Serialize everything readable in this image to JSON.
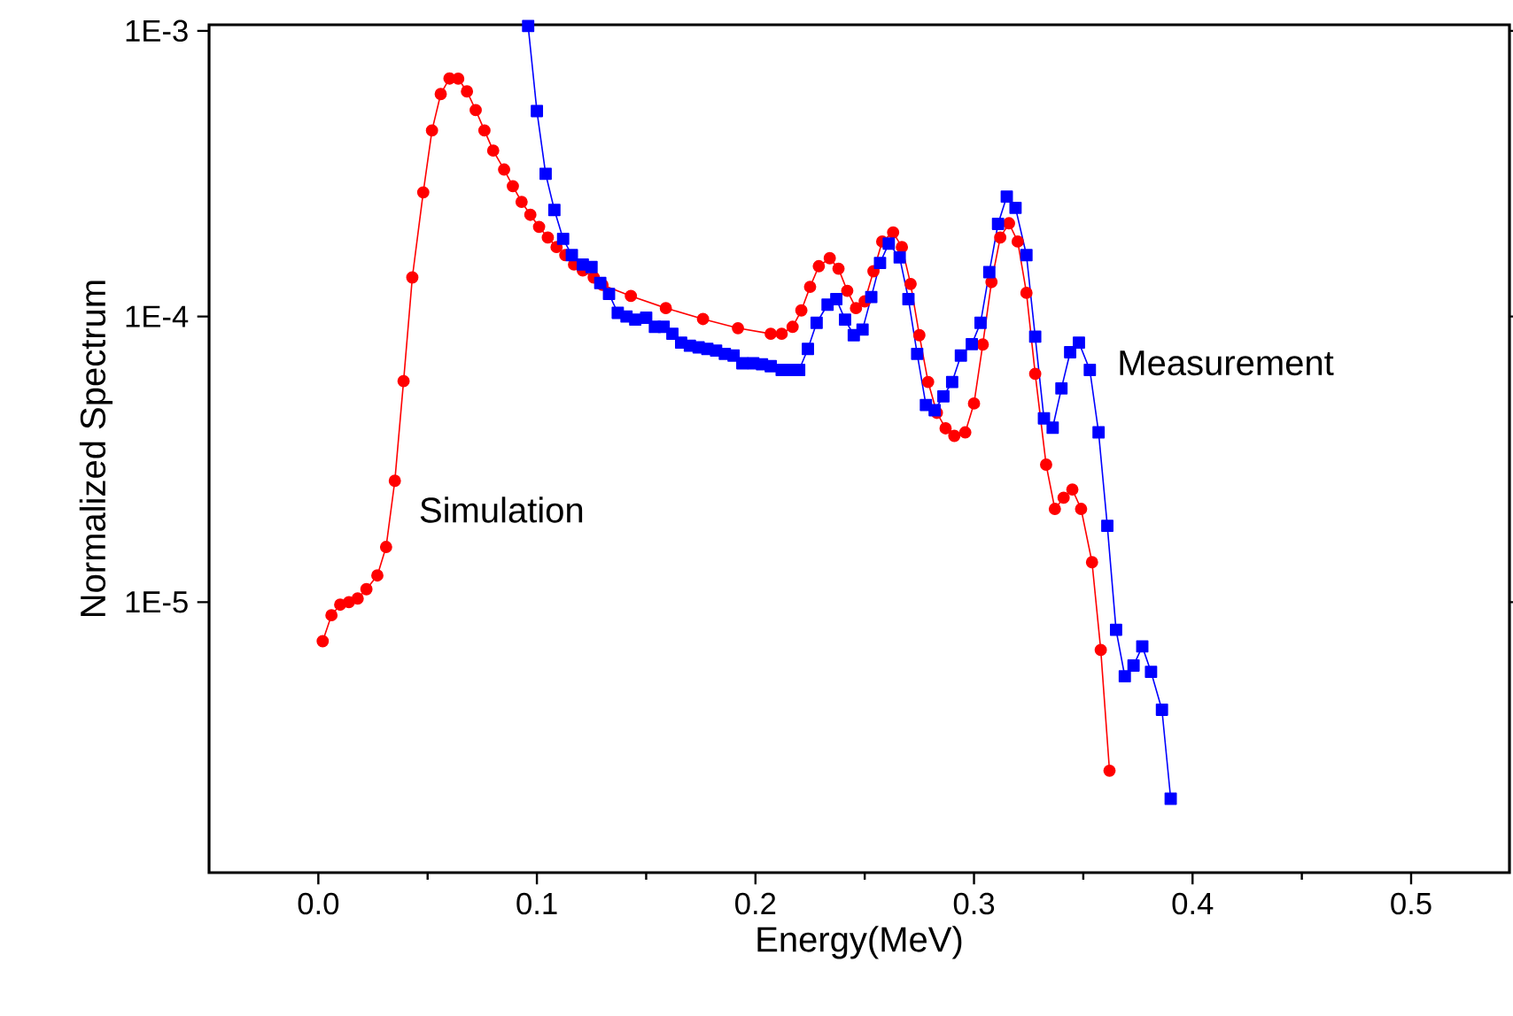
{
  "chart_data": {
    "type": "line",
    "xlabel": "Energy(MeV)",
    "ylabel": "Normalized Spectrum",
    "log": "y",
    "grid": false,
    "legend": false,
    "xlim": [
      -0.05,
      0.545
    ],
    "xticks": [
      {
        "value": 0,
        "label": "0.0"
      },
      0.1,
      0.2,
      0.3,
      0.4,
      0.5
    ],
    "ylim": [
      1.13e-06,
      0.00105
    ],
    "yticks": [
      {
        "value": 0.001,
        "label": "1E-3"
      },
      {
        "value": 0.0001,
        "label": "1E-4"
      },
      {
        "value": 1e-05,
        "label": "1E-5"
      }
    ],
    "series": [
      {
        "name": "Simulation",
        "color": "#ff0000",
        "marker": "circle",
        "x": [
          0.002,
          0.006,
          0.01,
          0.014,
          0.018,
          0.022,
          0.027,
          0.031,
          0.035,
          0.039,
          0.043,
          0.048,
          0.052,
          0.056,
          0.06,
          0.064,
          0.068,
          0.072,
          0.076,
          0.08,
          0.085,
          0.089,
          0.093,
          0.097,
          0.101,
          0.105,
          0.109,
          0.113,
          0.117,
          0.121,
          0.126,
          0.13,
          0.143,
          0.159,
          0.176,
          0.192,
          0.207,
          0.212,
          0.217,
          0.221,
          0.225,
          0.229,
          0.234,
          0.238,
          0.242,
          0.246,
          0.25,
          0.254,
          0.258,
          0.263,
          0.267,
          0.271,
          0.275,
          0.279,
          0.283,
          0.287,
          0.291,
          0.296,
          0.3,
          0.304,
          0.308,
          0.312,
          0.316,
          0.32,
          0.324,
          0.328,
          0.333,
          0.337,
          0.341,
          0.345,
          0.349,
          0.354,
          0.358,
          0.362
        ],
        "values": [
          7.3e-06,
          9e-06,
          9.8e-06,
          1e-05,
          1.03e-05,
          1.11e-05,
          1.24e-05,
          1.56e-05,
          2.66e-05,
          5.94e-05,
          0.000137,
          0.000272,
          0.000448,
          0.000601,
          0.000681,
          0.00068,
          0.000614,
          0.000528,
          0.000448,
          0.000381,
          0.000327,
          0.000286,
          0.000252,
          0.000227,
          0.000206,
          0.000189,
          0.000175,
          0.000164,
          0.000152,
          0.000145,
          0.000137,
          0.000129,
          0.000118,
          0.000107,
          9.8e-05,
          9.1e-05,
          8.7e-05,
          8.7e-05,
          9.2e-05,
          0.000105,
          0.000127,
          0.00015,
          0.00016,
          0.000147,
          0.000123,
          0.000107,
          0.000113,
          0.000144,
          0.000183,
          0.000197,
          0.000175,
          0.00013,
          8.6e-05,
          5.9e-05,
          4.6e-05,
          4.06e-05,
          3.82e-05,
          3.93e-05,
          4.96e-05,
          7.98e-05,
          0.000132,
          0.000189,
          0.000212,
          0.000183,
          0.000121,
          6.3e-05,
          3.03e-05,
          2.12e-05,
          2.32e-05,
          2.48e-05,
          2.12e-05,
          1.38e-05,
          6.8e-06,
          2.57e-06
        ]
      },
      {
        "name": "Measurement",
        "color": "#0000ff",
        "marker": "square",
        "x": [
          0.096,
          0.1,
          0.104,
          0.108,
          0.112,
          0.116,
          0.121,
          0.125,
          0.129,
          0.133,
          0.137,
          0.141,
          0.145,
          0.15,
          0.154,
          0.158,
          0.162,
          0.166,
          0.17,
          0.174,
          0.178,
          0.182,
          0.186,
          0.19,
          0.194,
          0.199,
          0.203,
          0.207,
          0.212,
          0.216,
          0.22,
          0.224,
          0.228,
          0.233,
          0.237,
          0.241,
          0.245,
          0.249,
          0.253,
          0.257,
          0.261,
          0.266,
          0.27,
          0.274,
          0.278,
          0.282,
          0.286,
          0.29,
          0.294,
          0.299,
          0.303,
          0.307,
          0.311,
          0.315,
          0.319,
          0.324,
          0.328,
          0.332,
          0.336,
          0.34,
          0.344,
          0.348,
          0.353,
          0.357,
          0.361,
          0.365,
          0.369,
          0.373,
          0.377,
          0.381,
          0.386,
          0.39
        ],
        "values": [
          0.00104,
          0.000524,
          0.000316,
          0.000236,
          0.000187,
          0.000164,
          0.000152,
          0.000149,
          0.000131,
          0.00012,
          0.000103,
          0.0001,
          9.75e-05,
          9.9e-05,
          9.2e-05,
          9.2e-05,
          8.7e-05,
          8.1e-05,
          7.9e-05,
          7.8e-05,
          7.7e-05,
          7.6e-05,
          7.4e-05,
          7.3e-05,
          6.86e-05,
          6.86e-05,
          6.8e-05,
          6.7e-05,
          6.5e-05,
          6.5e-05,
          6.5e-05,
          7.7e-05,
          9.5e-05,
          0.00011,
          0.000115,
          9.75e-05,
          8.6e-05,
          9e-05,
          0.000117,
          0.000154,
          0.00018,
          0.000161,
          0.000115,
          7.4e-05,
          4.9e-05,
          4.7e-05,
          5.25e-05,
          5.9e-05,
          7.3e-05,
          8e-05,
          9.5e-05,
          0.000143,
          0.000211,
          0.000263,
          0.00024,
          0.000164,
          8.5e-05,
          4.4e-05,
          4.08e-05,
          5.6e-05,
          7.5e-05,
          8.1e-05,
          6.5e-05,
          3.93e-05,
          1.85e-05,
          8e-06,
          5.5e-06,
          6e-06,
          7e-06,
          5.7e-06,
          4.2e-06,
          2.05e-06
        ]
      }
    ]
  }
}
